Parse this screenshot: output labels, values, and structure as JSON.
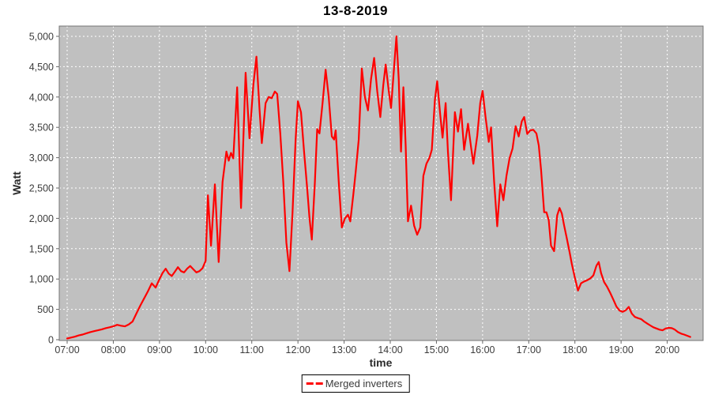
{
  "title": "13-8-2019",
  "colors": {
    "series": "#ff0000",
    "plot_background": "#c0c0c0",
    "gridline": "#ffffff",
    "plot_border": "#737373",
    "tick_mark": "#666666",
    "tick_label": "#3c3c3c",
    "axis_label": "#2b2b2b",
    "title_color": "#000000",
    "legend_border": "#000000"
  },
  "chart_data": {
    "type": "line",
    "title": "13-8-2019",
    "xlabel": "time",
    "ylabel": "Watt",
    "ylim": [
      0,
      5000
    ],
    "y_tick_step": 500,
    "y_tick_labels": [
      "0",
      "500",
      "1,000",
      "1,500",
      "2,000",
      "2,500",
      "3,000",
      "3,500",
      "4,000",
      "4,500",
      "5,000"
    ],
    "x_tick_labels": [
      "07:00",
      "08:00",
      "09:00",
      "10:00",
      "11:00",
      "12:00",
      "13:00",
      "14:00",
      "15:00",
      "16:00",
      "17:00",
      "18:00",
      "19:00",
      "20:00"
    ],
    "x_range_minutes": [
      -10,
      827
    ],
    "grid": true,
    "grid_style": "white-dashed-on-gray",
    "legend": {
      "position": "bottom-center",
      "entries": [
        "Merged inverters"
      ]
    },
    "series": [
      {
        "name": "Merged inverters",
        "color": "#ff0000",
        "points": [
          [
            "07:00",
            20
          ],
          [
            "07:05",
            35
          ],
          [
            "07:10",
            50
          ],
          [
            "07:15",
            70
          ],
          [
            "07:20",
            85
          ],
          [
            "07:25",
            105
          ],
          [
            "07:30",
            125
          ],
          [
            "07:35",
            140
          ],
          [
            "07:40",
            155
          ],
          [
            "07:45",
            170
          ],
          [
            "07:50",
            190
          ],
          [
            "07:55",
            205
          ],
          [
            "08:00",
            220
          ],
          [
            "08:05",
            245
          ],
          [
            "08:10",
            230
          ],
          [
            "08:15",
            220
          ],
          [
            "08:20",
            250
          ],
          [
            "08:25",
            300
          ],
          [
            "08:30",
            430
          ],
          [
            "08:35",
            560
          ],
          [
            "08:40",
            680
          ],
          [
            "08:45",
            800
          ],
          [
            "08:50",
            930
          ],
          [
            "08:55",
            860
          ],
          [
            "09:00",
            1000
          ],
          [
            "09:04",
            1100
          ],
          [
            "09:08",
            1170
          ],
          [
            "09:12",
            1090
          ],
          [
            "09:16",
            1050
          ],
          [
            "09:20",
            1120
          ],
          [
            "09:24",
            1195
          ],
          [
            "09:28",
            1130
          ],
          [
            "09:32",
            1110
          ],
          [
            "09:36",
            1170
          ],
          [
            "09:40",
            1215
          ],
          [
            "09:44",
            1160
          ],
          [
            "09:48",
            1110
          ],
          [
            "09:52",
            1130
          ],
          [
            "09:56",
            1180
          ],
          [
            "10:00",
            1300
          ],
          [
            "10:03",
            2380
          ],
          [
            "10:07",
            1550
          ],
          [
            "10:12",
            2560
          ],
          [
            "10:17",
            1280
          ],
          [
            "10:22",
            2600
          ],
          [
            "10:27",
            3100
          ],
          [
            "10:30",
            2950
          ],
          [
            "10:33",
            3080
          ],
          [
            "10:36",
            2990
          ],
          [
            "10:41",
            4160
          ],
          [
            "10:46",
            2170
          ],
          [
            "10:52",
            4400
          ],
          [
            "10:57",
            3320
          ],
          [
            "11:02",
            4200
          ],
          [
            "11:06",
            4665
          ],
          [
            "11:10",
            3800
          ],
          [
            "11:13",
            3240
          ],
          [
            "11:18",
            3900
          ],
          [
            "11:22",
            4000
          ],
          [
            "11:26",
            3980
          ],
          [
            "11:30",
            4090
          ],
          [
            "11:33",
            4050
          ],
          [
            "11:37",
            3400
          ],
          [
            "11:41",
            2600
          ],
          [
            "11:45",
            1600
          ],
          [
            "11:49",
            1130
          ],
          [
            "11:53",
            2100
          ],
          [
            "11:57",
            3300
          ],
          [
            "12:00",
            3930
          ],
          [
            "12:04",
            3750
          ],
          [
            "12:08",
            3100
          ],
          [
            "12:12",
            2500
          ],
          [
            "12:15",
            2000
          ],
          [
            "12:18",
            1650
          ],
          [
            "12:22",
            2600
          ],
          [
            "12:25",
            3470
          ],
          [
            "12:28",
            3400
          ],
          [
            "12:32",
            3900
          ],
          [
            "12:36",
            4450
          ],
          [
            "12:40",
            4000
          ],
          [
            "12:44",
            3350
          ],
          [
            "12:47",
            3300
          ],
          [
            "12:49",
            3450
          ],
          [
            "12:53",
            2600
          ],
          [
            "12:57",
            1850
          ],
          [
            "13:01",
            2000
          ],
          [
            "13:05",
            2060
          ],
          [
            "13:08",
            1950
          ],
          [
            "13:12",
            2400
          ],
          [
            "13:15",
            2760
          ],
          [
            "13:19",
            3300
          ],
          [
            "13:23",
            4470
          ],
          [
            "13:27",
            4000
          ],
          [
            "13:31",
            3780
          ],
          [
            "13:35",
            4300
          ],
          [
            "13:39",
            4645
          ],
          [
            "13:43",
            4100
          ],
          [
            "13:47",
            3670
          ],
          [
            "13:51",
            4200
          ],
          [
            "13:54",
            4535
          ],
          [
            "13:58",
            4100
          ],
          [
            "14:01",
            3820
          ],
          [
            "14:05",
            4500
          ],
          [
            "14:08",
            5000
          ],
          [
            "14:11",
            4300
          ],
          [
            "14:14",
            3100
          ],
          [
            "14:17",
            4160
          ],
          [
            "14:20",
            3200
          ],
          [
            "14:23",
            1950
          ],
          [
            "14:27",
            2210
          ],
          [
            "14:31",
            1880
          ],
          [
            "14:35",
            1730
          ],
          [
            "14:39",
            1850
          ],
          [
            "14:43",
            2700
          ],
          [
            "14:47",
            2900
          ],
          [
            "14:51",
            3000
          ],
          [
            "14:54",
            3130
          ],
          [
            "14:58",
            3950
          ],
          [
            "15:01",
            4260
          ],
          [
            "15:05",
            3700
          ],
          [
            "15:08",
            3330
          ],
          [
            "15:12",
            3900
          ],
          [
            "15:15",
            3100
          ],
          [
            "15:19",
            2300
          ],
          [
            "15:24",
            3750
          ],
          [
            "15:28",
            3430
          ],
          [
            "15:32",
            3800
          ],
          [
            "15:36",
            3130
          ],
          [
            "15:41",
            3560
          ],
          [
            "15:45",
            3170
          ],
          [
            "15:48",
            2900
          ],
          [
            "15:53",
            3360
          ],
          [
            "15:57",
            3900
          ],
          [
            "16:00",
            4100
          ],
          [
            "16:04",
            3650
          ],
          [
            "16:08",
            3260
          ],
          [
            "16:11",
            3500
          ],
          [
            "16:15",
            2600
          ],
          [
            "16:19",
            1870
          ],
          [
            "16:23",
            2560
          ],
          [
            "16:27",
            2300
          ],
          [
            "16:31",
            2700
          ],
          [
            "16:35",
            2990
          ],
          [
            "16:39",
            3150
          ],
          [
            "16:43",
            3520
          ],
          [
            "16:47",
            3350
          ],
          [
            "16:51",
            3600
          ],
          [
            "16:54",
            3670
          ],
          [
            "16:58",
            3390
          ],
          [
            "17:02",
            3450
          ],
          [
            "17:06",
            3460
          ],
          [
            "17:10",
            3400
          ],
          [
            "17:13",
            3200
          ],
          [
            "17:16",
            2800
          ],
          [
            "17:20",
            2100
          ],
          [
            "17:23",
            2100
          ],
          [
            "17:26",
            1970
          ],
          [
            "17:29",
            1550
          ],
          [
            "17:33",
            1460
          ],
          [
            "17:37",
            2050
          ],
          [
            "17:40",
            2170
          ],
          [
            "17:43",
            2080
          ],
          [
            "17:46",
            1880
          ],
          [
            "17:49",
            1700
          ],
          [
            "17:53",
            1450
          ],
          [
            "17:56",
            1250
          ],
          [
            "18:00",
            1020
          ],
          [
            "18:04",
            810
          ],
          [
            "18:08",
            930
          ],
          [
            "18:12",
            960
          ],
          [
            "18:16",
            980
          ],
          [
            "18:20",
            1010
          ],
          [
            "18:24",
            1060
          ],
          [
            "18:28",
            1220
          ],
          [
            "18:31",
            1280
          ],
          [
            "18:34",
            1100
          ],
          [
            "18:38",
            950
          ],
          [
            "18:42",
            870
          ],
          [
            "18:46",
            770
          ],
          [
            "18:50",
            660
          ],
          [
            "18:54",
            545
          ],
          [
            "18:58",
            480
          ],
          [
            "19:02",
            460
          ],
          [
            "19:06",
            485
          ],
          [
            "19:10",
            540
          ],
          [
            "19:14",
            430
          ],
          [
            "19:18",
            375
          ],
          [
            "19:22",
            355
          ],
          [
            "19:26",
            340
          ],
          [
            "19:30",
            300
          ],
          [
            "19:34",
            265
          ],
          [
            "19:38",
            235
          ],
          [
            "19:42",
            205
          ],
          [
            "19:46",
            185
          ],
          [
            "19:50",
            165
          ],
          [
            "19:54",
            155
          ],
          [
            "19:58",
            185
          ],
          [
            "20:02",
            195
          ],
          [
            "20:06",
            190
          ],
          [
            "20:10",
            165
          ],
          [
            "20:14",
            125
          ],
          [
            "20:18",
            100
          ],
          [
            "20:22",
            85
          ],
          [
            "20:26",
            65
          ],
          [
            "20:30",
            45
          ]
        ]
      }
    ]
  }
}
